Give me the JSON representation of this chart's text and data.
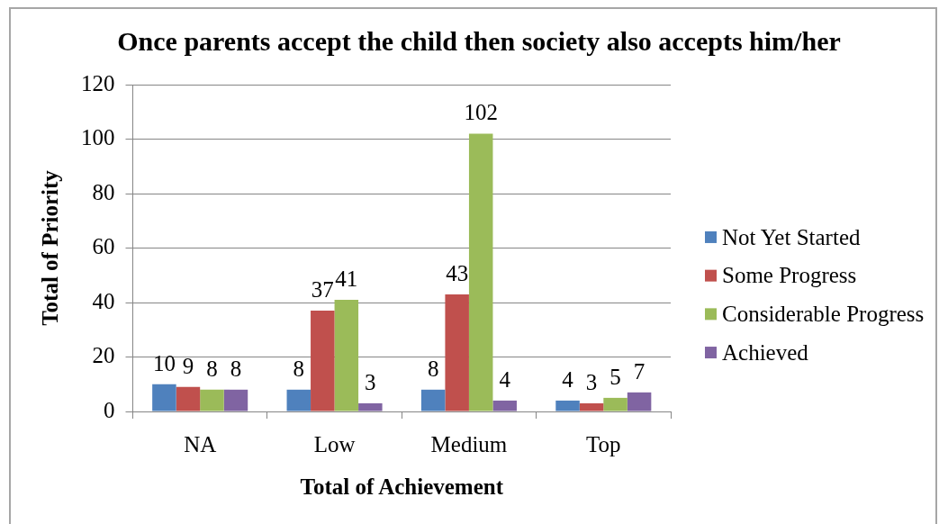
{
  "chart_data": {
    "type": "bar",
    "title": "Once parents accept the child then society also accepts him/her",
    "xlabel": "Total of Achievement",
    "ylabel": "Total of Priority",
    "categories": [
      "NA",
      "Low",
      "Medium",
      "Top"
    ],
    "series": [
      {
        "name": "Not Yet Started",
        "color": "#4f81bd",
        "values": [
          10,
          8,
          8,
          4
        ]
      },
      {
        "name": "Some Progress",
        "color": "#c0504d",
        "values": [
          9,
          37,
          43,
          3
        ]
      },
      {
        "name": "Considerable Progress",
        "color": "#9bbb59",
        "values": [
          8,
          41,
          102,
          5
        ]
      },
      {
        "name": "Achieved",
        "color": "#8064a2",
        "values": [
          8,
          3,
          4,
          7
        ]
      }
    ],
    "ylim": [
      0,
      120
    ],
    "yticks": [
      0,
      20,
      40,
      60,
      80,
      100,
      120
    ],
    "grid": "y",
    "legend": "right",
    "data_labels": true
  }
}
